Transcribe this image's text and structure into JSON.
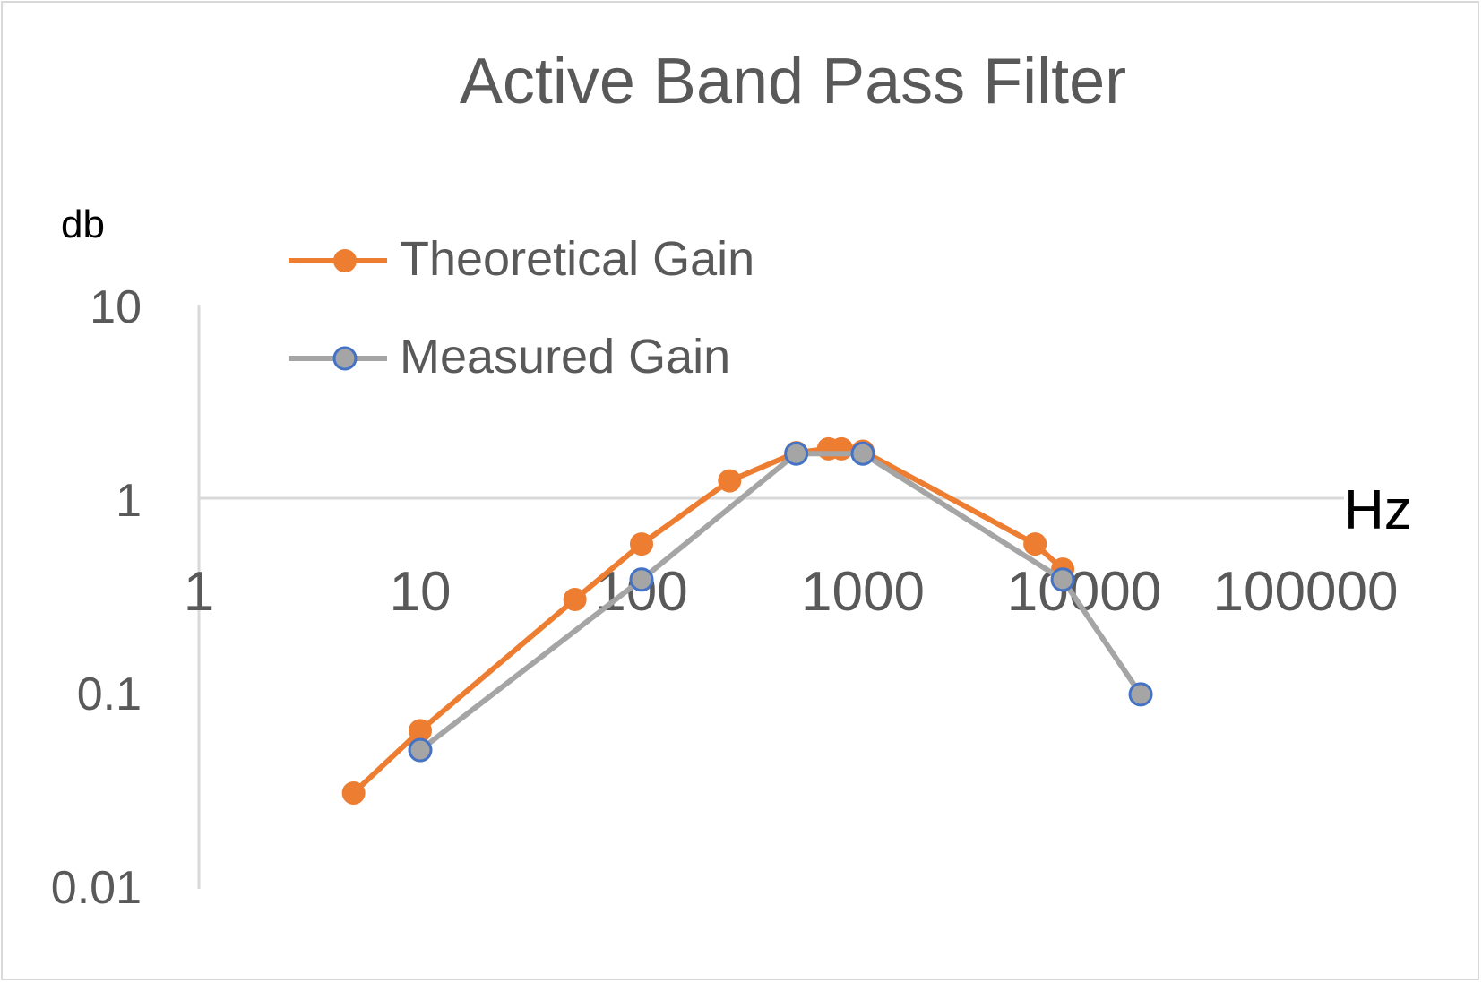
{
  "chart_data": {
    "type": "line",
    "title": "Active Band Pass Filter",
    "xlabel": "Hz",
    "ylabel": "db",
    "x_scale": "log",
    "y_scale": "log",
    "xlim": [
      1,
      100000
    ],
    "ylim": [
      0.01,
      10
    ],
    "x_ticks": [
      "1",
      "10",
      "100",
      "1000",
      "10000",
      "100000"
    ],
    "y_ticks": [
      "0.01",
      "0.1",
      "1",
      "10"
    ],
    "grid": false,
    "legend_position": "top-left",
    "series": [
      {
        "name": "Theoretical Gain",
        "color": "#ed7d31",
        "marker": "filled-circle",
        "points": [
          {
            "x": 5,
            "y": 0.03
          },
          {
            "x": 10,
            "y": 0.063
          },
          {
            "x": 50,
            "y": 0.3
          },
          {
            "x": 100,
            "y": 0.58
          },
          {
            "x": 250,
            "y": 1.23
          },
          {
            "x": 500,
            "y": 1.72
          },
          {
            "x": 700,
            "y": 1.8
          },
          {
            "x": 800,
            "y": 1.8
          },
          {
            "x": 1000,
            "y": 1.75
          },
          {
            "x": 6000,
            "y": 0.58
          },
          {
            "x": 8000,
            "y": 0.43
          }
        ]
      },
      {
        "name": "Measured Gain",
        "color": "#a5a5a5",
        "marker_edge": "#4472c4",
        "marker": "circle",
        "points": [
          {
            "x": 10,
            "y": 0.05
          },
          {
            "x": 100,
            "y": 0.38
          },
          {
            "x": 500,
            "y": 1.7
          },
          {
            "x": 1000,
            "y": 1.7
          },
          {
            "x": 8000,
            "y": 0.38
          },
          {
            "x": 18000,
            "y": 0.097
          }
        ]
      }
    ]
  }
}
